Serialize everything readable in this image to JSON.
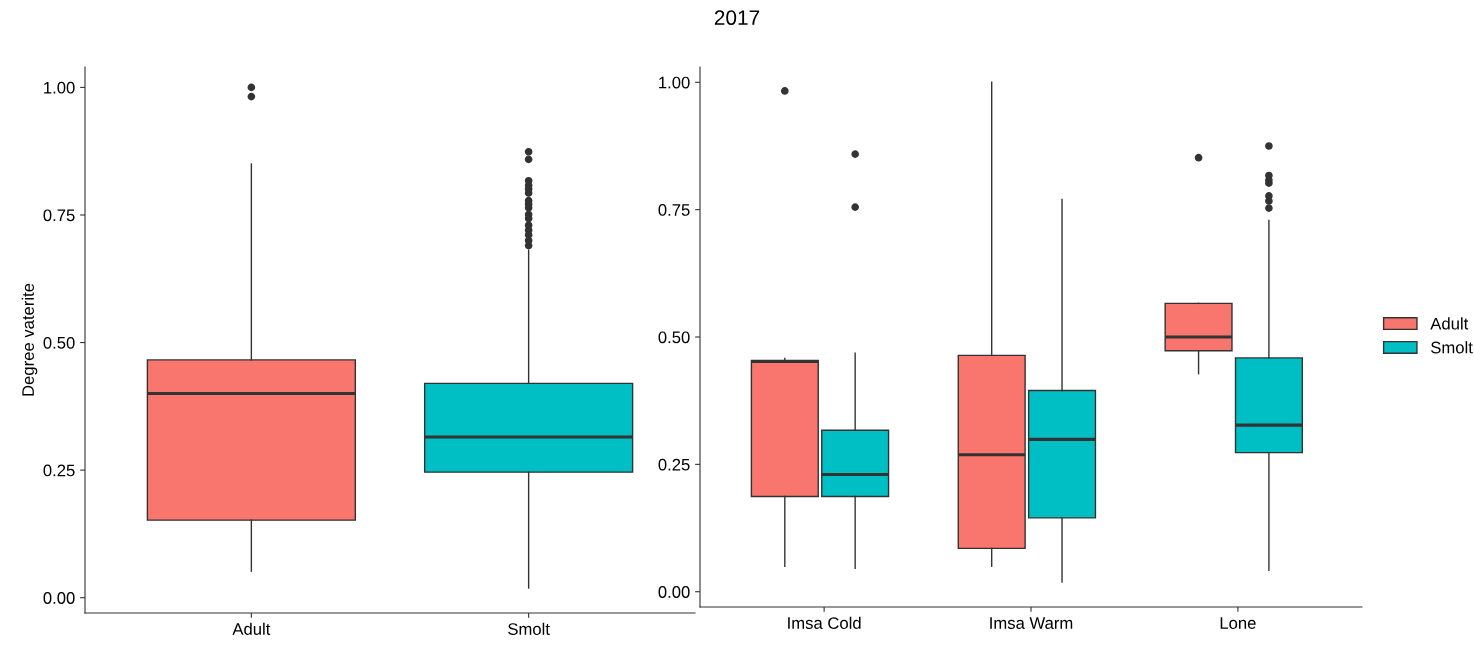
{
  "chart_data": [
    {
      "type": "box",
      "ylabel": "Degree vaterite",
      "categories": [
        "Adult",
        "Smolt"
      ],
      "colors": [
        "#f8766d",
        "#00bfc4"
      ],
      "boxes": [
        {
          "low": 0.052,
          "q1": 0.152,
          "median": 0.4,
          "q3": 0.466,
          "high": 0.85,
          "outliers": [
            0.982,
            1.0
          ]
        },
        {
          "low": 0.019,
          "q1": 0.246,
          "median": 0.315,
          "q3": 0.42,
          "high": 0.681,
          "outliers": [
            0.69,
            0.7,
            0.711,
            0.72,
            0.73,
            0.743,
            0.751,
            0.764,
            0.771,
            0.778,
            0.793,
            0.801,
            0.808,
            0.817,
            0.859,
            0.874
          ]
        }
      ],
      "ylim": [
        -0.03,
        1.04
      ],
      "yticks": [
        {
          "value": 0,
          "label": "0.00"
        },
        {
          "value": 0.25,
          "label": "0.25"
        },
        {
          "value": 0.5,
          "label": "0.50"
        },
        {
          "value": 0.75,
          "label": "0.75"
        },
        {
          "value": 1,
          "label": "1.00"
        }
      ],
      "grid": false,
      "legend": false
    },
    {
      "type": "box",
      "title": "2017",
      "categories": [
        "Imsa Cold",
        "Imsa Warm",
        "Lone"
      ],
      "series": [
        {
          "name": "Adult",
          "color": "#f8766d",
          "boxes": [
            {
              "low": 0.05,
              "q1": 0.187,
              "median": 0.452,
              "q3": 0.454,
              "high": 0.458,
              "outliers": [
                0.983
              ]
            },
            {
              "low": 0.05,
              "q1": 0.085,
              "median": 0.269,
              "q3": 0.464,
              "high": 1.0
            },
            {
              "low": 0.428,
              "q1": 0.473,
              "median": 0.5,
              "q3": 0.566,
              "high": 0.566,
              "outliers": [
                0.852
              ]
            }
          ]
        },
        {
          "name": "Smolt",
          "color": "#00bfc4",
          "boxes": [
            {
              "low": 0.046,
              "q1": 0.187,
              "median": 0.23,
              "q3": 0.317,
              "high": 0.468,
              "outliers": [
                0.755,
                0.859
              ]
            },
            {
              "low": 0.019,
              "q1": 0.145,
              "median": 0.299,
              "q3": 0.395,
              "high": 0.77
            },
            {
              "low": 0.042,
              "q1": 0.273,
              "median": 0.327,
              "q3": 0.459,
              "high": 0.729,
              "outliers": [
                0.753,
                0.767,
                0.777,
                0.802,
                0.808,
                0.817,
                0.875
              ]
            }
          ]
        }
      ],
      "ylim": [
        -0.03,
        1.03
      ],
      "yticks": [
        {
          "value": 0,
          "label": "0.00"
        },
        {
          "value": 0.25,
          "label": "0.25"
        },
        {
          "value": 0.5,
          "label": "0.50"
        },
        {
          "value": 0.75,
          "label": "0.75"
        },
        {
          "value": 1,
          "label": "1.00"
        }
      ],
      "grid": false,
      "legend": "right"
    }
  ]
}
